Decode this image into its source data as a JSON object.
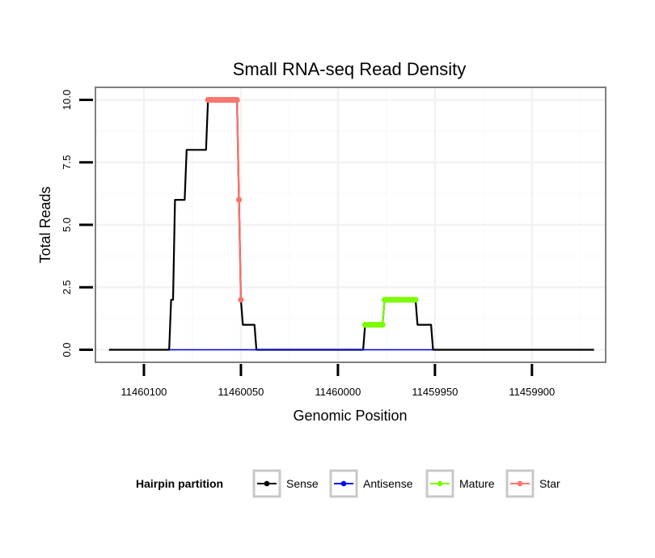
{
  "chart_data": {
    "type": "line",
    "title": "Small RNA-seq Read Density",
    "xlabel": "Genomic Position",
    "ylabel": "Total Reads",
    "x_reversed": true,
    "xlim": [
      11460125,
      11459862
    ],
    "ylim": [
      -0.5,
      10.5
    ],
    "x_ticks": [
      11460100,
      11460050,
      11460000,
      11459950,
      11459900
    ],
    "x_tick_labels": [
      "11460100",
      "11460050",
      "11460000",
      "11459950",
      "11459900"
    ],
    "y_ticks": [
      0,
      2.5,
      5,
      7.5,
      10
    ],
    "y_tick_labels": [
      "0.0",
      "2.5",
      "5.0",
      "7.5",
      "10.0"
    ],
    "grid": true,
    "legend": {
      "title": "Hairpin partition",
      "position": "bottom",
      "entries": [
        {
          "label": "Sense",
          "color": "#000000"
        },
        {
          "label": "Antisense",
          "color": "#0000ff"
        },
        {
          "label": "Mature",
          "color": "#7cfc00"
        },
        {
          "label": "Star",
          "color": "#f8766d"
        }
      ]
    },
    "series": [
      {
        "name": "Sense",
        "color": "#000000",
        "points": [
          [
            11460118,
            0
          ],
          [
            11460087,
            0
          ],
          [
            11460086,
            2
          ],
          [
            11460085,
            2
          ],
          [
            11460084,
            6
          ],
          [
            11460079,
            6
          ],
          [
            11460078,
            8
          ],
          [
            11460068,
            8
          ],
          [
            11460067,
            10
          ],
          [
            11460052,
            10
          ],
          [
            11460050,
            2
          ],
          [
            11460049,
            1
          ],
          [
            11460043,
            1
          ],
          [
            11460042,
            0
          ],
          [
            11459987,
            0
          ],
          [
            11459986,
            1
          ],
          [
            11459977,
            1
          ],
          [
            11459976,
            2
          ],
          [
            11459960,
            2
          ],
          [
            11459959,
            1
          ],
          [
            11459952,
            1
          ],
          [
            11459951,
            0
          ],
          [
            11459868,
            0
          ]
        ]
      },
      {
        "name": "Antisense",
        "color": "#0000ff",
        "points": [
          [
            11460087,
            0
          ],
          [
            11460042,
            0
          ],
          [
            11459986,
            0
          ],
          [
            11459951,
            0
          ]
        ]
      },
      {
        "name": "Mature",
        "color": "#7cfc00",
        "points": [
          [
            11459986,
            1
          ],
          [
            11459985,
            1
          ],
          [
            11459984,
            1
          ],
          [
            11459983,
            1
          ],
          [
            11459982,
            1
          ],
          [
            11459981,
            1
          ],
          [
            11459980,
            1
          ],
          [
            11459979,
            1
          ],
          [
            11459978,
            1
          ],
          [
            11459977,
            1
          ],
          [
            11459976,
            2
          ],
          [
            11459975,
            2
          ],
          [
            11459974,
            2
          ],
          [
            11459973,
            2
          ],
          [
            11459972,
            2
          ],
          [
            11459971,
            2
          ],
          [
            11459970,
            2
          ],
          [
            11459969,
            2
          ],
          [
            11459968,
            2
          ],
          [
            11459967,
            2
          ],
          [
            11459966,
            2
          ],
          [
            11459965,
            2
          ],
          [
            11459964,
            2
          ],
          [
            11459963,
            2
          ],
          [
            11459962,
            2
          ],
          [
            11459961,
            2
          ],
          [
            11459960,
            2
          ]
        ]
      },
      {
        "name": "Star",
        "color": "#f8766d",
        "points": [
          [
            11460067,
            10
          ],
          [
            11460066,
            10
          ],
          [
            11460065,
            10
          ],
          [
            11460064,
            10
          ],
          [
            11460063,
            10
          ],
          [
            11460062,
            10
          ],
          [
            11460061,
            10
          ],
          [
            11460060,
            10
          ],
          [
            11460059,
            10
          ],
          [
            11460058,
            10
          ],
          [
            11460057,
            10
          ],
          [
            11460056,
            10
          ],
          [
            11460055,
            10
          ],
          [
            11460054,
            10
          ],
          [
            11460053,
            10
          ],
          [
            11460052,
            10
          ],
          [
            11460051,
            6
          ],
          [
            11460050,
            2
          ]
        ]
      }
    ]
  }
}
